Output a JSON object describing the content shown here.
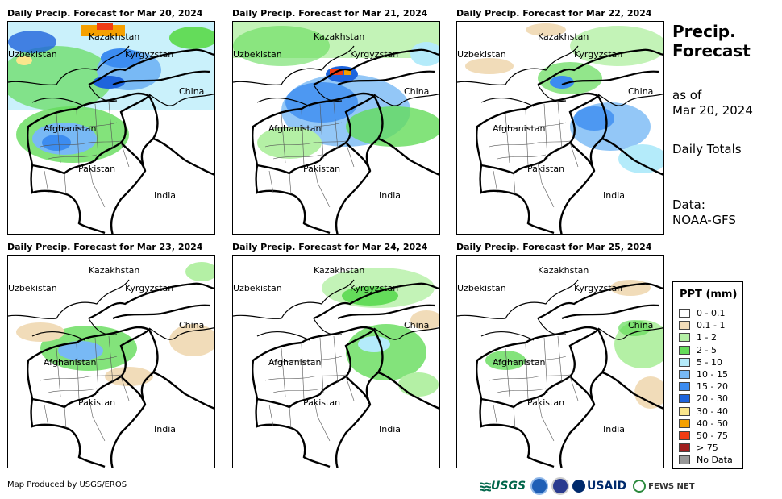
{
  "panels": [
    {
      "title": "Daily Precip. Forecast for Mar 20, 2024",
      "intensity": "heavy"
    },
    {
      "title": "Daily Precip. Forecast for Mar 21, 2024",
      "intensity": "moderate"
    },
    {
      "title": "Daily Precip. Forecast for Mar 22, 2024",
      "intensity": "light-east"
    },
    {
      "title": "Daily Precip. Forecast for Mar 23, 2024",
      "intensity": "light-west"
    },
    {
      "title": "Daily Precip. Forecast for Mar 24, 2024",
      "intensity": "light-east"
    },
    {
      "title": "Daily Precip. Forecast for Mar 25, 2024",
      "intensity": "minimal"
    }
  ],
  "map_labels": {
    "kazakhstan": "Kazakhstan",
    "uzbekistan": "Uzbekistan",
    "kyrgyzstan": "Kyrgyzstan",
    "china": "China",
    "afghanistan": "Afghanistan",
    "pakistan": "Pakistan",
    "india": "India"
  },
  "sidebar": {
    "title_line1": "Precip.",
    "title_line2": "Forecast",
    "asof_line1": "as of",
    "asof_line2": "Mar 20, 2024",
    "daily": "Daily Totals",
    "data_line1": "Data:",
    "data_line2": "NOAA-GFS"
  },
  "legend": {
    "title": "PPT (mm)",
    "items": [
      {
        "label": "0 - 0.1",
        "color": "#ffffff"
      },
      {
        "label": "0.1 - 1",
        "color": "#f1dcb9"
      },
      {
        "label": "1 - 2",
        "color": "#b4f0a5"
      },
      {
        "label": "2 - 5",
        "color": "#64dc5a"
      },
      {
        "label": "5 - 10",
        "color": "#b4ebfa"
      },
      {
        "label": "10 - 15",
        "color": "#78b9f5"
      },
      {
        "label": "15 - 20",
        "color": "#3c8cf0"
      },
      {
        "label": "20 - 30",
        "color": "#1e64dc"
      },
      {
        "label": "30 - 40",
        "color": "#fae68c"
      },
      {
        "label": "40 - 50",
        "color": "#f5a000"
      },
      {
        "label": "50 - 75",
        "color": "#f03c14"
      },
      {
        "label": "> 75",
        "color": "#a01e1e"
      },
      {
        "label": "No Data",
        "color": "#999999"
      }
    ]
  },
  "footer": {
    "credit": "Map Produced by USGS/EROS",
    "logo_usgs": "USGS",
    "logo_usaid": "USAID",
    "logo_fews": "FEWS NET"
  }
}
